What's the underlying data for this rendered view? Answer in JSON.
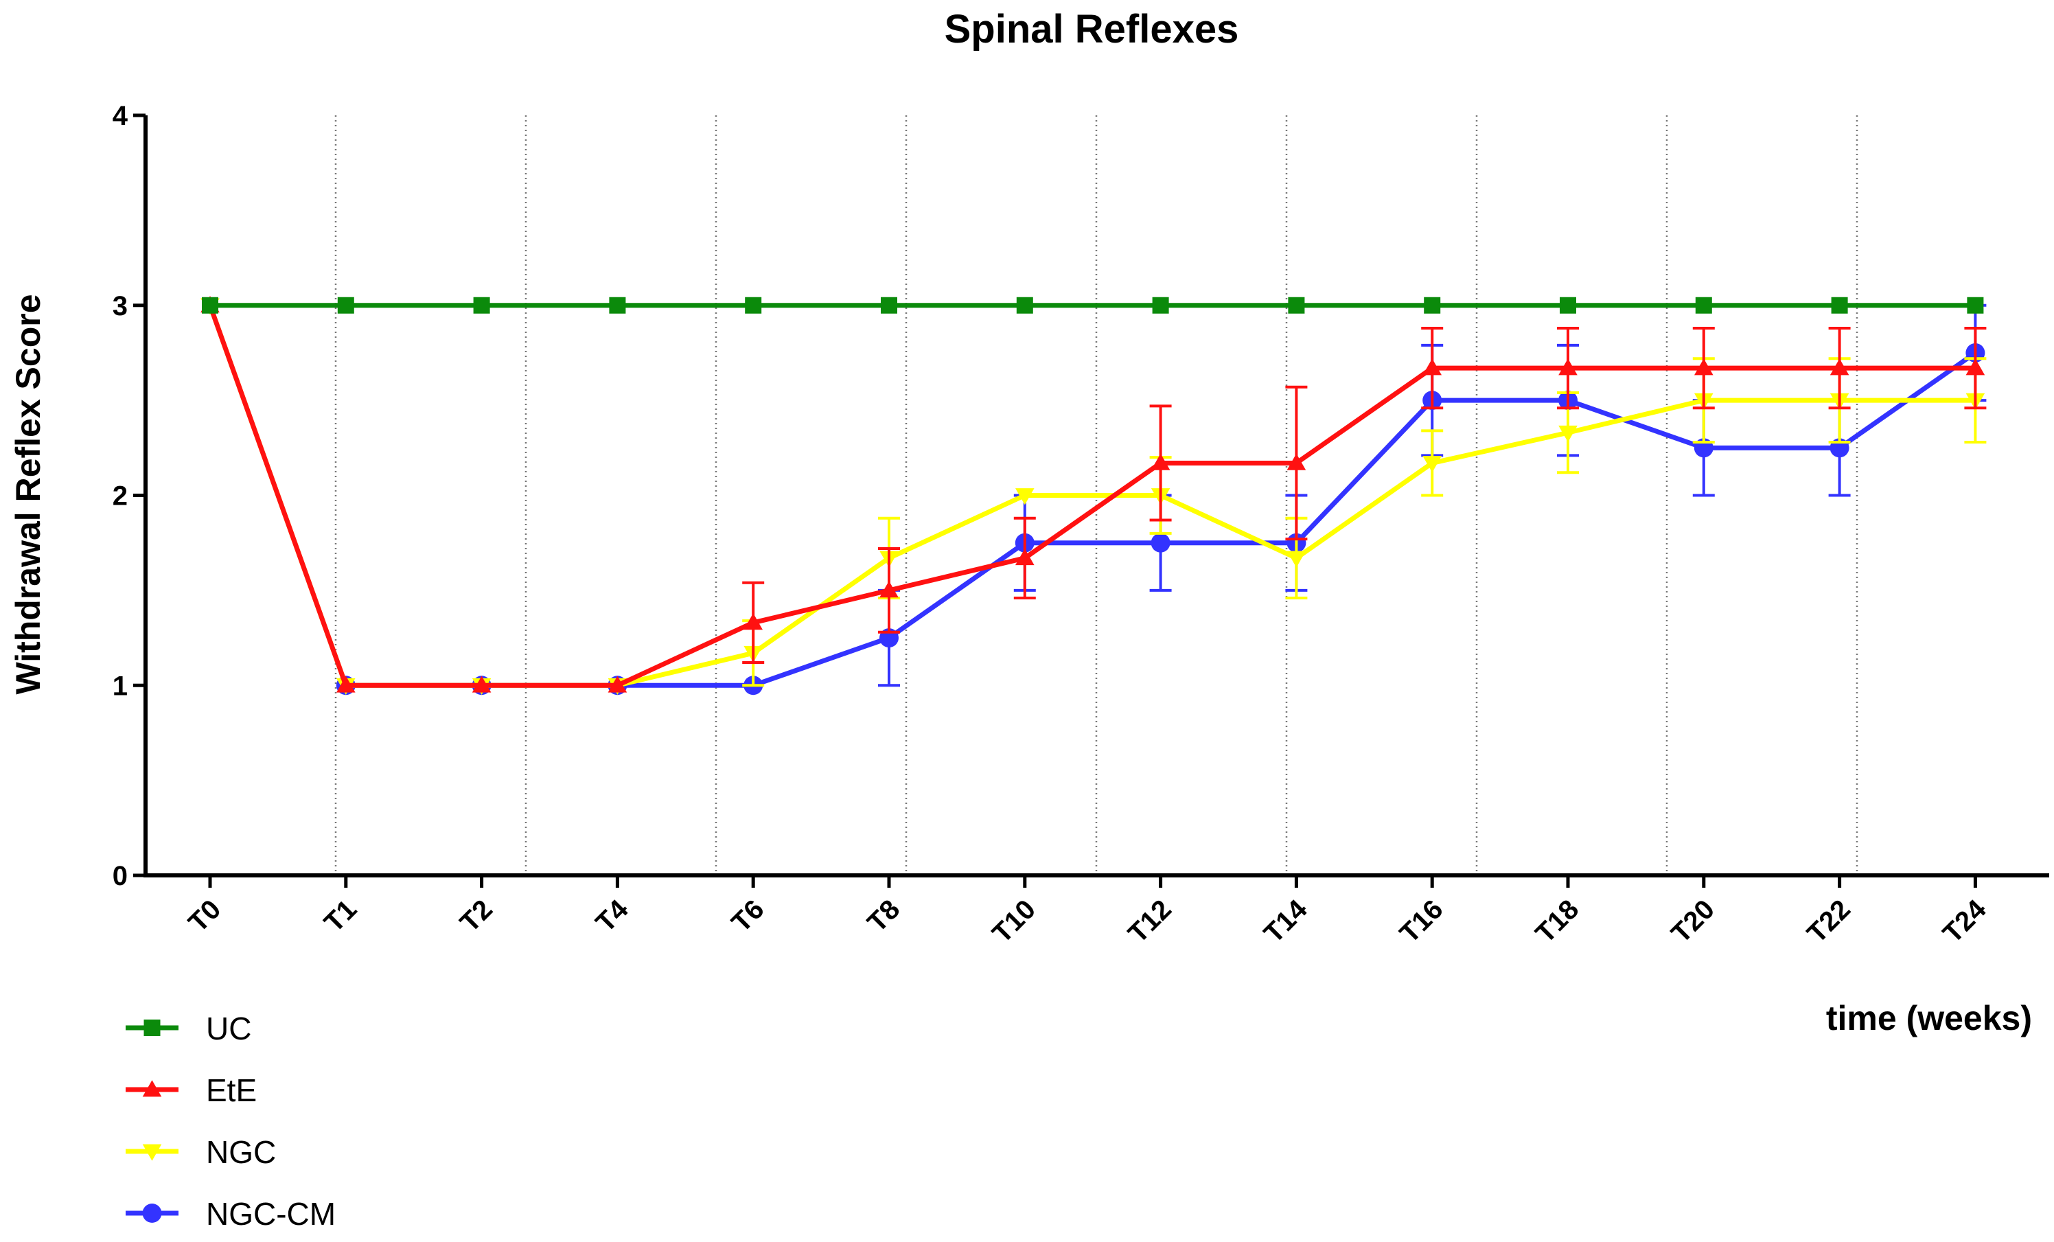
{
  "chart_data": {
    "type": "line",
    "title": "Spinal Reflexes",
    "xlabel": "time (weeks)",
    "ylabel": "Withdrawal Reflex Score",
    "categories": [
      "T0",
      "T1",
      "T2",
      "T4",
      "T6",
      "T8",
      "T10",
      "T12",
      "T14",
      "T16",
      "T18",
      "T20",
      "T22",
      "T24"
    ],
    "ylim": [
      0,
      4
    ],
    "yticks": [
      0,
      1,
      2,
      3,
      4
    ],
    "grid": "vertical dotted",
    "legend_position": "bottom-left",
    "series": [
      {
        "name": "UC",
        "color": "#0b8a0b",
        "marker": "square",
        "values": [
          3,
          3,
          3,
          3,
          3,
          3,
          3,
          3,
          3,
          3,
          3,
          3,
          3,
          3
        ],
        "errors": [
          0,
          0,
          0,
          0,
          0,
          0,
          0,
          0,
          0,
          0,
          0,
          0,
          0,
          0
        ]
      },
      {
        "name": "EtE",
        "color": "#ff1111",
        "marker": "triangle-up",
        "values": [
          3,
          1,
          1,
          1,
          1.33,
          1.5,
          1.67,
          2.17,
          2.17,
          2.67,
          2.67,
          2.67,
          2.67,
          2.67
        ],
        "errors": [
          0,
          0,
          0,
          0,
          0.21,
          0.22,
          0.21,
          0.3,
          0.4,
          0.21,
          0.21,
          0.21,
          0.21,
          0.21
        ]
      },
      {
        "name": "NGC",
        "color": "#ffff00",
        "marker": "triangle-down",
        "values": [
          3,
          1,
          1,
          1,
          1.17,
          1.67,
          2,
          2,
          1.67,
          2.17,
          2.33,
          2.5,
          2.5,
          2.5
        ],
        "errors": [
          0,
          0,
          0,
          0,
          0.17,
          0.21,
          0,
          0.2,
          0.21,
          0.17,
          0.21,
          0.22,
          0.22,
          0.22
        ]
      },
      {
        "name": "NGC-CM",
        "color": "#3333ff",
        "marker": "circle",
        "values": [
          null,
          1,
          1,
          1,
          1,
          1.25,
          1.75,
          1.75,
          1.75,
          2.5,
          2.5,
          2.25,
          2.25,
          2.75
        ],
        "errors": [
          0,
          0,
          0,
          0,
          0,
          0.25,
          0.25,
          0.25,
          0.25,
          0.29,
          0.29,
          0.25,
          0.25,
          0.25
        ]
      }
    ]
  }
}
